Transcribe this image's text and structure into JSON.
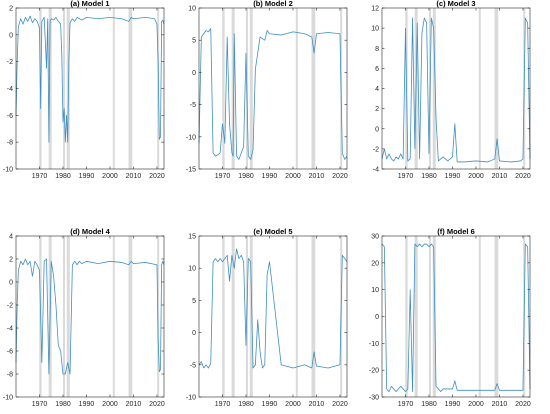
{
  "figure": {
    "band_color": "#dadada",
    "line_color": "#3f8fbf",
    "axis_color": "#262626"
  },
  "recession_bands": [
    [
      1969.9,
      1970.9
    ],
    [
      1973.9,
      1975.2
    ],
    [
      1980.0,
      1980.6
    ],
    [
      1981.6,
      1982.9
    ],
    [
      2001.2,
      2001.9
    ],
    [
      2007.9,
      2009.5
    ],
    [
      2020.1,
      2020.4
    ]
  ],
  "chart_data": [
    {
      "type": "line",
      "title": "(a) Model 1",
      "xlim": [
        1960,
        2023
      ],
      "ylim": [
        -10,
        2
      ],
      "xticks": [
        1970,
        1980,
        1990,
        2000,
        2010,
        2020
      ],
      "yticks": [
        -10,
        -8,
        -6,
        -4,
        -2,
        0,
        2
      ],
      "series": [
        {
          "x": [
            1960,
            1960.5,
            1961,
            1962,
            1963,
            1964,
            1965,
            1966,
            1967,
            1968,
            1969,
            1970,
            1970.5,
            1971,
            1972,
            1973,
            1973.5,
            1974,
            1974.5,
            1975,
            1976,
            1977,
            1978,
            1979,
            1979.5,
            1980,
            1980.5,
            1981,
            1981.5,
            1982,
            1982.5,
            1983,
            1984,
            1985,
            1986,
            1987,
            1988,
            1990,
            1995,
            2000,
            2005,
            2008,
            2009,
            2010,
            2015,
            2019,
            2020,
            2020.5,
            2021,
            2021.5,
            2022,
            2022.5,
            2023
          ],
          "y": [
            -6,
            -2,
            0.6,
            1.2,
            0.8,
            1.3,
            1.0,
            1.4,
            0.9,
            1.2,
            1.0,
            0.5,
            -5.5,
            1.0,
            1.3,
            -2.5,
            1.2,
            -8.0,
            1.0,
            1.2,
            1.1,
            1.3,
            1.0,
            0.8,
            -1.5,
            -6.5,
            -5.5,
            -8.0,
            -6.0,
            -8.0,
            -2.0,
            0.9,
            1.2,
            1.0,
            1.3,
            1.2,
            1.1,
            1.3,
            1.2,
            1.3,
            1.2,
            1.0,
            1.3,
            1.2,
            1.3,
            1.2,
            0.8,
            -2.0,
            -7.8,
            -7.6,
            1.0,
            1.1,
            0.8
          ]
        }
      ]
    },
    {
      "type": "line",
      "title": "(b) Model 2",
      "xlim": [
        1960,
        2023
      ],
      "ylim": [
        -15,
        10
      ],
      "xticks": [
        1970,
        1980,
        1990,
        2000,
        2010,
        2020
      ],
      "yticks": [
        -15,
        -10,
        -5,
        0,
        5,
        10
      ],
      "series": [
        {
          "x": [
            1960,
            1961,
            1962,
            1963,
            1964,
            1965,
            1966,
            1967,
            1968,
            1969,
            1970,
            1971,
            1972,
            1973,
            1974,
            1974.5,
            1975,
            1976,
            1977,
            1978,
            1979,
            1980,
            1981,
            1982,
            1983,
            1984,
            1986,
            1988,
            1989,
            1990,
            1995,
            2000,
            2005,
            2008,
            2009,
            2010,
            2015,
            2020,
            2021,
            2022,
            2023
          ],
          "y": [
            -11,
            5.5,
            6.0,
            6.5,
            6.3,
            6.8,
            -12.5,
            -13.0,
            -12.8,
            -12.5,
            -8.0,
            -11.0,
            5.5,
            -8.0,
            -12.5,
            -13.0,
            6.0,
            -13.0,
            -13.5,
            -12.5,
            -11.5,
            3.0,
            -13.0,
            -13.5,
            -12.0,
            0.5,
            5.5,
            5.0,
            6.5,
            6.0,
            5.8,
            6.3,
            6.0,
            5.5,
            3.0,
            6.0,
            6.2,
            6.0,
            -12.5,
            -13.5,
            -13.0
          ]
        }
      ]
    },
    {
      "type": "line",
      "title": "(c) Model 3",
      "xlim": [
        1960,
        2023
      ],
      "ylim": [
        -4,
        12
      ],
      "xticks": [
        1970,
        1980,
        1990,
        2000,
        2010,
        2020
      ],
      "yticks": [
        -4,
        -2,
        0,
        2,
        4,
        6,
        8,
        10,
        12
      ],
      "series": [
        {
          "x": [
            1960,
            1961,
            1962,
            1963,
            1964,
            1965,
            1966,
            1967,
            1968,
            1969,
            1970,
            1971,
            1972,
            1973,
            1974,
            1975,
            1976,
            1977,
            1978,
            1979,
            1980,
            1981,
            1982,
            1983,
            1984,
            1985,
            1986,
            1987,
            1988,
            1989,
            1990,
            1991,
            1992,
            1995,
            2000,
            2005,
            2008,
            2009,
            2010,
            2015,
            2019,
            2020,
            2021,
            2022,
            2023
          ],
          "y": [
            -3.0,
            -2.0,
            -3.0,
            -2.5,
            -3.0,
            -3.2,
            -2.8,
            -3.0,
            -2.5,
            -3.0,
            10.0,
            -3.2,
            -3.0,
            11.0,
            -2.0,
            10.5,
            -3.0,
            9.5,
            11.0,
            10.5,
            -2.5,
            11.0,
            10.0,
            1.0,
            -3.2,
            -3.0,
            -2.8,
            -3.0,
            -3.2,
            -3.0,
            -2.8,
            0.5,
            -3.3,
            -3.3,
            -3.2,
            -3.3,
            -3.0,
            -1.0,
            -3.2,
            -3.3,
            -3.2,
            -3.0,
            11.0,
            10.5,
            -3.0
          ]
        }
      ]
    },
    {
      "type": "line",
      "title": "(d) Model 4",
      "xlim": [
        1960,
        2023
      ],
      "ylim": [
        -10,
        4
      ],
      "xticks": [
        1970,
        1980,
        1990,
        2000,
        2010,
        2020
      ],
      "yticks": [
        -10,
        -8,
        -6,
        -4,
        -2,
        0,
        2,
        4
      ],
      "series": [
        {
          "x": [
            1960,
            1960.5,
            1961,
            1962,
            1963,
            1964,
            1965,
            1966,
            1967,
            1968,
            1969,
            1970,
            1971,
            1972,
            1973,
            1974,
            1975,
            1976,
            1977,
            1978,
            1979,
            1980,
            1981,
            1982,
            1983,
            1984,
            1985,
            1986,
            1987,
            1988,
            1990,
            1995,
            2000,
            2005,
            2008,
            2009,
            2010,
            2015,
            2020,
            2020.5,
            2021,
            2021.5,
            2022,
            2022.5,
            2023
          ],
          "y": [
            -7,
            -2,
            1.0,
            1.8,
            1.5,
            2.0,
            1.5,
            1.8,
            0.5,
            1.8,
            1.5,
            1.0,
            -7.0,
            1.8,
            2.0,
            -8.0,
            1.8,
            0.5,
            -2.0,
            -5.5,
            -6.0,
            -8.0,
            -8.0,
            -7.0,
            -8.0,
            1.5,
            1.8,
            1.5,
            1.8,
            1.6,
            1.8,
            1.6,
            1.8,
            1.7,
            1.5,
            1.8,
            1.6,
            1.7,
            1.5,
            -5.0,
            -7.8,
            -7.6,
            1.5,
            1.8,
            1.5
          ]
        }
      ]
    },
    {
      "type": "line",
      "title": "(e) Model 5",
      "xlim": [
        1960,
        2023
      ],
      "ylim": [
        -10,
        15
      ],
      "xticks": [
        1970,
        1980,
        1990,
        2000,
        2010,
        2020
      ],
      "yticks": [
        -10,
        -5,
        0,
        5,
        10,
        15
      ],
      "series": [
        {
          "x": [
            1960,
            1961,
            1962,
            1963,
            1964,
            1965,
            1966,
            1967,
            1968,
            1969,
            1970,
            1971,
            1972,
            1973,
            1974,
            1975,
            1976,
            1977,
            1978,
            1979,
            1980,
            1981,
            1982,
            1983,
            1984,
            1985,
            1986,
            1987,
            1988,
            1989,
            1990,
            1995,
            2000,
            2005,
            2008,
            2009,
            2010,
            2015,
            2020,
            2021,
            2022,
            2023
          ],
          "y": [
            -5.0,
            -4.5,
            -5.5,
            -5.0,
            -5.5,
            -4.8,
            11.0,
            11.5,
            11.0,
            11.5,
            11.0,
            11.5,
            12.0,
            8.0,
            12.0,
            10.0,
            13.0,
            11.5,
            12.0,
            11.0,
            -2.0,
            11.5,
            11.0,
            -5.5,
            -5.0,
            2.0,
            -3.0,
            -5.5,
            -5.0,
            9.0,
            11.0,
            -5.0,
            -5.5,
            -5.0,
            -5.5,
            -3.0,
            -5.2,
            -5.5,
            -5.0,
            12.0,
            11.5,
            11.0
          ]
        }
      ]
    },
    {
      "type": "line",
      "title": "(f) Model 6",
      "xlim": [
        1960,
        2023
      ],
      "ylim": [
        -30,
        30
      ],
      "xticks": [
        1970,
        1980,
        1990,
        2000,
        2010,
        2020
      ],
      "yticks": [
        -30,
        -20,
        -10,
        0,
        10,
        20,
        30
      ],
      "series": [
        {
          "x": [
            1960,
            1961,
            1962,
            1963,
            1964,
            1965,
            1966,
            1967,
            1968,
            1969,
            1970,
            1971,
            1972,
            1973,
            1974,
            1975,
            1976,
            1977,
            1978,
            1979,
            1980,
            1981,
            1982,
            1983,
            1984,
            1985,
            1986,
            1990,
            1991,
            1992,
            1995,
            2000,
            2005,
            2008,
            2009,
            2010,
            2015,
            2020,
            2021,
            2022,
            2023
          ],
          "y": [
            27,
            26,
            -27,
            -28,
            -26,
            -27,
            -28,
            -27,
            -26,
            -27,
            -28,
            -27,
            10,
            -28,
            27,
            26,
            27,
            26,
            27,
            27,
            26,
            27,
            26,
            -26,
            -27,
            -28,
            -27,
            -27,
            -24,
            -27.5,
            -27.5,
            -27.5,
            -27.5,
            -27.5,
            -25,
            -27.5,
            -27.5,
            -27.5,
            27,
            26,
            -27
          ]
        }
      ]
    }
  ]
}
